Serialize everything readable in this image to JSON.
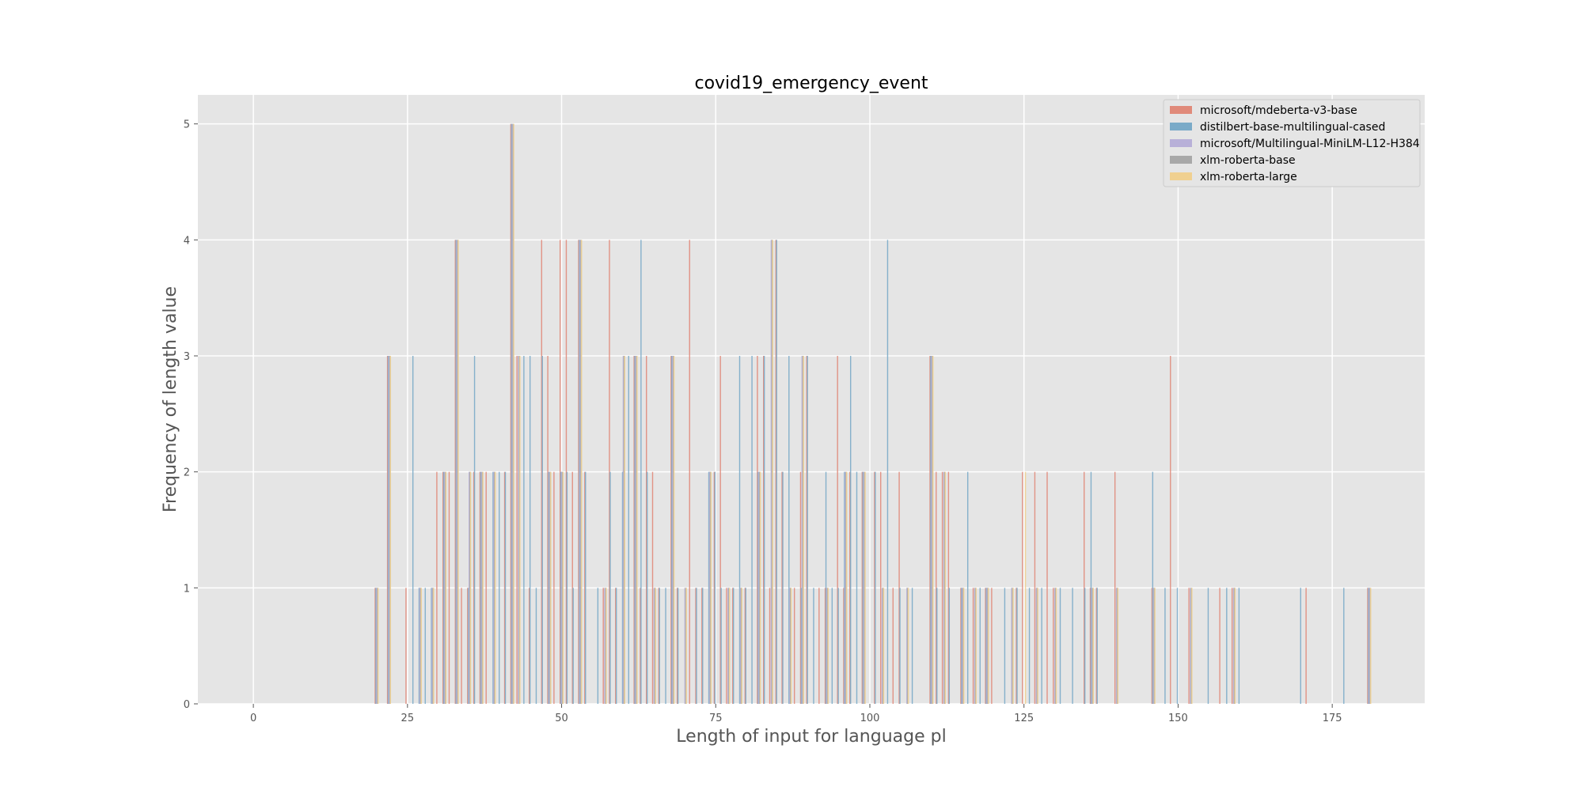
{
  "chart_data": {
    "type": "bar",
    "title": "covid19_emergency_event",
    "xlabel": "Length of input for language pl",
    "ylabel": "Frequency of length value",
    "xlim": [
      -9,
      190
    ],
    "ylim": [
      0,
      5.25
    ],
    "xticks": [
      0,
      25,
      50,
      75,
      100,
      125,
      150,
      175
    ],
    "yticks": [
      0,
      1,
      2,
      3,
      4,
      5
    ],
    "grid": true,
    "legend_position": "top-right",
    "series": [
      {
        "name": "microsoft/mdeberta-v3-base",
        "color": "#e08a7a",
        "points": [
          [
            20,
            1
          ],
          [
            22,
            3
          ],
          [
            25,
            1
          ],
          [
            30,
            2
          ],
          [
            31,
            2
          ],
          [
            32,
            2
          ],
          [
            33,
            4
          ],
          [
            34,
            1
          ],
          [
            35,
            1
          ],
          [
            36,
            2
          ],
          [
            37,
            2
          ],
          [
            38,
            2
          ],
          [
            41,
            2
          ],
          [
            42,
            5
          ],
          [
            43,
            3
          ],
          [
            45,
            1
          ],
          [
            47,
            4
          ],
          [
            48,
            3
          ],
          [
            49,
            2
          ],
          [
            50,
            4
          ],
          [
            51,
            4
          ],
          [
            52,
            2
          ],
          [
            53,
            4
          ],
          [
            54,
            2
          ],
          [
            57,
            1
          ],
          [
            58,
            4
          ],
          [
            59,
            1
          ],
          [
            62,
            3
          ],
          [
            63,
            1
          ],
          [
            64,
            3
          ],
          [
            65,
            2
          ],
          [
            66,
            1
          ],
          [
            68,
            3
          ],
          [
            69,
            1
          ],
          [
            71,
            4
          ],
          [
            72,
            1
          ],
          [
            73,
            1
          ],
          [
            75,
            2
          ],
          [
            76,
            3
          ],
          [
            77,
            1
          ],
          [
            78,
            1
          ],
          [
            80,
            1
          ],
          [
            82,
            3
          ],
          [
            83,
            3
          ],
          [
            84,
            1
          ],
          [
            85,
            4
          ],
          [
            86,
            2
          ],
          [
            88,
            1
          ],
          [
            89,
            2
          ],
          [
            90,
            3
          ],
          [
            92,
            1
          ],
          [
            93,
            1
          ],
          [
            95,
            3
          ],
          [
            96,
            1
          ],
          [
            97,
            2
          ],
          [
            99,
            2
          ],
          [
            101,
            2
          ],
          [
            102,
            2
          ],
          [
            104,
            1
          ],
          [
            105,
            2
          ],
          [
            110,
            3
          ],
          [
            111,
            2
          ],
          [
            112,
            2
          ],
          [
            113,
            2
          ],
          [
            115,
            1
          ],
          [
            117,
            1
          ],
          [
            119,
            1
          ],
          [
            120,
            1
          ],
          [
            124,
            1
          ],
          [
            125,
            2
          ],
          [
            127,
            2
          ],
          [
            129,
            2
          ],
          [
            130,
            1
          ],
          [
            135,
            2
          ],
          [
            136,
            1
          ],
          [
            137,
            1
          ],
          [
            140,
            2
          ],
          [
            146,
            1
          ],
          [
            149,
            3
          ],
          [
            152,
            1
          ],
          [
            157,
            1
          ],
          [
            159,
            1
          ],
          [
            171,
            1
          ],
          [
            181,
            1
          ]
        ]
      },
      {
        "name": "distilbert-base-multilingual-cased",
        "color": "#7aaac8",
        "points": [
          [
            20,
            1
          ],
          [
            22,
            3
          ],
          [
            26,
            3
          ],
          [
            27,
            1
          ],
          [
            28,
            1
          ],
          [
            29,
            1
          ],
          [
            31,
            2
          ],
          [
            33,
            4
          ],
          [
            35,
            1
          ],
          [
            36,
            3
          ],
          [
            37,
            2
          ],
          [
            39,
            2
          ],
          [
            40,
            2
          ],
          [
            41,
            2
          ],
          [
            42,
            5
          ],
          [
            44,
            3
          ],
          [
            45,
            3
          ],
          [
            46,
            1
          ],
          [
            47,
            3
          ],
          [
            48,
            2
          ],
          [
            50,
            2
          ],
          [
            51,
            2
          ],
          [
            52,
            1
          ],
          [
            53,
            4
          ],
          [
            54,
            2
          ],
          [
            56,
            1
          ],
          [
            58,
            2
          ],
          [
            59,
            1
          ],
          [
            60,
            2
          ],
          [
            61,
            3
          ],
          [
            62,
            3
          ],
          [
            63,
            4
          ],
          [
            64,
            2
          ],
          [
            66,
            1
          ],
          [
            67,
            1
          ],
          [
            68,
            3
          ],
          [
            69,
            1
          ],
          [
            72,
            1
          ],
          [
            73,
            1
          ],
          [
            74,
            2
          ],
          [
            75,
            2
          ],
          [
            76,
            1
          ],
          [
            78,
            1
          ],
          [
            79,
            3
          ],
          [
            80,
            1
          ],
          [
            81,
            3
          ],
          [
            82,
            2
          ],
          [
            83,
            3
          ],
          [
            85,
            4
          ],
          [
            86,
            2
          ],
          [
            87,
            3
          ],
          [
            89,
            1
          ],
          [
            90,
            3
          ],
          [
            91,
            1
          ],
          [
            93,
            2
          ],
          [
            94,
            1
          ],
          [
            95,
            1
          ],
          [
            96,
            2
          ],
          [
            97,
            3
          ],
          [
            98,
            2
          ],
          [
            99,
            2
          ],
          [
            101,
            2
          ],
          [
            103,
            4
          ],
          [
            105,
            1
          ],
          [
            107,
            1
          ],
          [
            110,
            3
          ],
          [
            111,
            1
          ],
          [
            113,
            1
          ],
          [
            115,
            1
          ],
          [
            116,
            2
          ],
          [
            118,
            1
          ],
          [
            119,
            1
          ],
          [
            122,
            1
          ],
          [
            124,
            1
          ],
          [
            126,
            1
          ],
          [
            128,
            1
          ],
          [
            131,
            1
          ],
          [
            133,
            1
          ],
          [
            135,
            1
          ],
          [
            136,
            2
          ],
          [
            137,
            1
          ],
          [
            146,
            2
          ],
          [
            148,
            1
          ],
          [
            150,
            1
          ],
          [
            155,
            1
          ],
          [
            158,
            1
          ],
          [
            160,
            1
          ],
          [
            170,
            1
          ],
          [
            177,
            1
          ],
          [
            181,
            1
          ]
        ]
      },
      {
        "name": "microsoft/Multilingual-MiniLM-L12-H384",
        "color": "#b8b0d8",
        "points": [
          [
            20,
            1
          ],
          [
            22,
            3
          ],
          [
            27,
            1
          ],
          [
            29,
            1
          ],
          [
            31,
            2
          ],
          [
            33,
            4
          ],
          [
            35,
            2
          ],
          [
            37,
            2
          ],
          [
            39,
            2
          ],
          [
            42,
            5
          ],
          [
            43,
            3
          ],
          [
            48,
            2
          ],
          [
            50,
            2
          ],
          [
            53,
            4
          ],
          [
            57,
            1
          ],
          [
            60,
            3
          ],
          [
            62,
            3
          ],
          [
            65,
            1
          ],
          [
            68,
            3
          ],
          [
            70,
            1
          ],
          [
            74,
            2
          ],
          [
            77,
            1
          ],
          [
            79,
            1
          ],
          [
            82,
            2
          ],
          [
            84,
            4
          ],
          [
            87,
            1
          ],
          [
            89,
            3
          ],
          [
            93,
            1
          ],
          [
            96,
            2
          ],
          [
            99,
            2
          ],
          [
            102,
            1
          ],
          [
            106,
            1
          ],
          [
            110,
            3
          ],
          [
            112,
            2
          ],
          [
            115,
            1
          ],
          [
            117,
            1
          ],
          [
            119,
            1
          ],
          [
            123,
            1
          ],
          [
            127,
            1
          ],
          [
            130,
            1
          ],
          [
            136,
            1
          ],
          [
            140,
            1
          ],
          [
            146,
            1
          ],
          [
            152,
            1
          ],
          [
            159,
            1
          ],
          [
            181,
            1
          ]
        ]
      },
      {
        "name": "xlm-roberta-base",
        "color": "#a8a8a8",
        "points": [
          [
            20,
            1
          ],
          [
            22,
            3
          ],
          [
            27,
            1
          ],
          [
            29,
            1
          ],
          [
            31,
            2
          ],
          [
            33,
            4
          ],
          [
            35,
            2
          ],
          [
            37,
            2
          ],
          [
            39,
            2
          ],
          [
            42,
            5
          ],
          [
            43,
            3
          ],
          [
            48,
            2
          ],
          [
            50,
            2
          ],
          [
            53,
            4
          ],
          [
            57,
            1
          ],
          [
            60,
            3
          ],
          [
            62,
            3
          ],
          [
            65,
            1
          ],
          [
            68,
            3
          ],
          [
            70,
            1
          ],
          [
            74,
            2
          ],
          [
            77,
            1
          ],
          [
            79,
            1
          ],
          [
            82,
            2
          ],
          [
            84,
            4
          ],
          [
            87,
            1
          ],
          [
            89,
            3
          ],
          [
            93,
            1
          ],
          [
            96,
            2
          ],
          [
            99,
            2
          ],
          [
            102,
            1
          ],
          [
            106,
            1
          ],
          [
            110,
            3
          ],
          [
            112,
            2
          ],
          [
            115,
            1
          ],
          [
            117,
            1
          ],
          [
            119,
            1
          ],
          [
            123,
            1
          ],
          [
            127,
            1
          ],
          [
            130,
            1
          ],
          [
            136,
            1
          ],
          [
            140,
            1
          ],
          [
            146,
            1
          ],
          [
            152,
            1
          ],
          [
            159,
            1
          ],
          [
            181,
            1
          ]
        ]
      },
      {
        "name": "xlm-roberta-large",
        "color": "#f0d090",
        "points": [
          [
            20,
            1
          ],
          [
            22,
            3
          ],
          [
            27,
            1
          ],
          [
            29,
            1
          ],
          [
            31,
            2
          ],
          [
            33,
            4
          ],
          [
            35,
            2
          ],
          [
            37,
            2
          ],
          [
            39,
            2
          ],
          [
            42,
            5
          ],
          [
            43,
            3
          ],
          [
            48,
            2
          ],
          [
            50,
            2
          ],
          [
            53,
            4
          ],
          [
            57,
            1
          ],
          [
            60,
            3
          ],
          [
            62,
            3
          ],
          [
            65,
            1
          ],
          [
            68,
            3
          ],
          [
            70,
            1
          ],
          [
            74,
            2
          ],
          [
            77,
            1
          ],
          [
            79,
            1
          ],
          [
            82,
            2
          ],
          [
            84,
            4
          ],
          [
            87,
            1
          ],
          [
            89,
            3
          ],
          [
            93,
            1
          ],
          [
            96,
            2
          ],
          [
            99,
            2
          ],
          [
            102,
            1
          ],
          [
            106,
            1
          ],
          [
            110,
            3
          ],
          [
            112,
            2
          ],
          [
            115,
            1
          ],
          [
            117,
            1
          ],
          [
            119,
            1
          ],
          [
            123,
            1
          ],
          [
            125,
            2
          ],
          [
            127,
            1
          ],
          [
            130,
            1
          ],
          [
            136,
            1
          ],
          [
            140,
            1
          ],
          [
            146,
            1
          ],
          [
            152,
            1
          ],
          [
            159,
            1
          ],
          [
            181,
            1
          ]
        ]
      }
    ]
  }
}
